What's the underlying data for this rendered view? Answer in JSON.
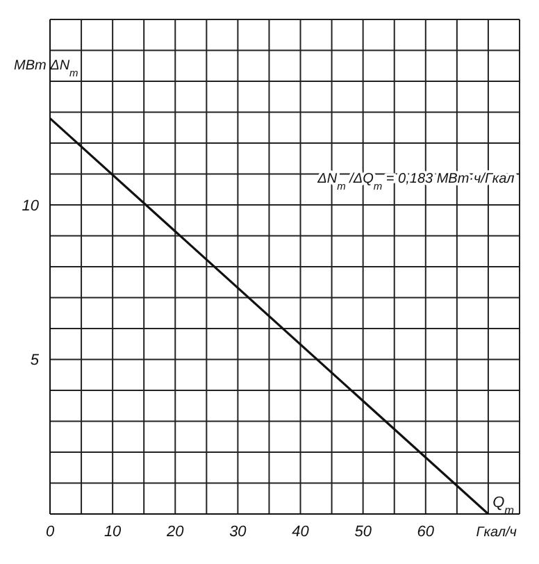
{
  "chart_data": {
    "type": "line",
    "xlabel": "Гкал/ч",
    "ylabel": "МВт ΔN$_{т}$",
    "annotations": [
      "ΔN$_{т}$/ΔQ$_{т}$ = 0,183 МВт·ч/Гкал",
      "Q$_{т}$"
    ],
    "x": [
      0,
      70
    ],
    "series": [
      {
        "color": "#111111",
        "values": [
          12.8,
          0
        ]
      }
    ],
    "xlim": [
      0,
      75
    ],
    "xticks": [
      0,
      {
        "value": 5,
        "label": null
      },
      10,
      {
        "value": 15,
        "label": null
      },
      20,
      {
        "value": 25,
        "label": null
      },
      30,
      {
        "value": 35,
        "label": null
      },
      40,
      {
        "value": 45,
        "label": null
      },
      50,
      {
        "value": 55,
        "label": null
      },
      60,
      {
        "value": 65,
        "label": null
      },
      {
        "value": 70,
        "label": null
      },
      {
        "value": 75,
        "label": null
      }
    ],
    "ylim": [
      0,
      16
    ],
    "yticks": [
      {
        "value": 0,
        "label": null
      },
      {
        "value": 1,
        "label": null
      },
      {
        "value": 2,
        "label": null
      },
      {
        "value": 3,
        "label": null
      },
      {
        "value": 4,
        "label": null
      },
      5,
      {
        "value": 6,
        "label": null
      },
      {
        "value": 7,
        "label": null
      },
      {
        "value": 8,
        "label": null
      },
      {
        "value": 9,
        "label": null
      },
      10,
      {
        "value": 11,
        "label": null
      },
      {
        "value": 12,
        "label": null
      },
      {
        "value": 13,
        "label": null
      },
      {
        "value": 14,
        "label": null
      },
      {
        "value": 15,
        "label": null
      },
      {
        "value": 16,
        "label": null
      }
    ],
    "grid": true
  }
}
